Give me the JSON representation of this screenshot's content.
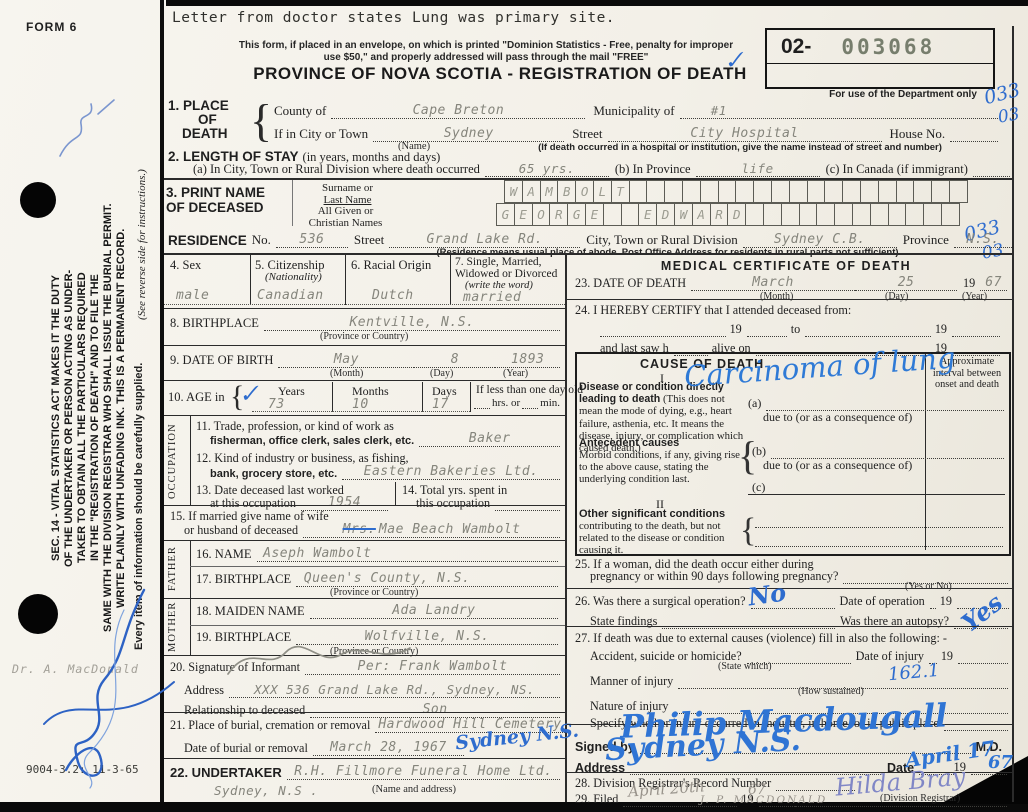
{
  "margin": {
    "form_no": "FORM 6",
    "sec14_lines": [
      "SEC. 14 - VITAL STATISTICS ACT MAKES IT THE DUTY",
      "OF THE UNDERTAKER OR PERSON ACTING AS UNDER-",
      "TAKER TO OBTAIN ALL THE PARTICULARS REQUIRED",
      "IN THE \"REGISTRATION OF DEATH\" AND TO FILE THE",
      "SAME WITH THE DIVISION REGISTRAR WHO SHALL ISSUE THE BURIAL PERMIT.",
      "WRITE PLAINLY WITH UNFADING INK. THIS IS A PERMANENT RECORD."
    ],
    "see_reverse": "(See reverse side for instructions.)",
    "every_item": "Every item of information should be carefully supplied.",
    "doctor": "Dr. A. MacDonald",
    "print_code": "9004-3.2: 11-3-65"
  },
  "header": {
    "top_note": "Letter from doctor states Lung was primary site.",
    "envelope1": "This form, if placed in an envelope, on which is printed \"Dominion Statistics - Free, penalty for improper",
    "envelope2": "use $50,\" and properly addressed will pass through the mail \"FREE\"",
    "title": "PROVINCE OF NOVA SCOTIA - REGISTRATION OF DEATH",
    "serial_prefix": "02-",
    "serial_number": "003068",
    "dept_only": "For use of the Department only",
    "check": "✓",
    "code1": "033",
    "code2": "03",
    "code3": "033",
    "code4": "03"
  },
  "s1": {
    "h1": "1. PLACE",
    "h2": "OF",
    "h3": "DEATH",
    "county_label": "County of",
    "county": "Cape Breton",
    "municipality_label": "Municipality of",
    "municipality": "#1",
    "city_label": "If in City or Town",
    "city": "Sydney",
    "name_cap": "(Name)",
    "street_label": "Street",
    "street": "City Hospital",
    "house_label": "House No.",
    "hospital_cap": "(If death occurred in a hospital or institution, give the name instead of street and number)"
  },
  "s2": {
    "h": "2. LENGTH OF STAY",
    "sub": "(in years, months and days)",
    "a_l": "(a) In City, Town or Rural Division where death occurred",
    "a_v": "65 yrs.",
    "b_l": "(b) In Province",
    "b_v": "life",
    "c_l": "(c) In Canada (if immigrant)"
  },
  "s3": {
    "h1": "3. PRINT NAME",
    "h2": "OF DECEASED",
    "sub1a": "Surname or",
    "sub1b": "Last Name",
    "sub2a": "All Given or",
    "sub2b": "Christian Names",
    "surname": "WAMBOLT",
    "given": "GEORGE  EDWARD"
  },
  "res": {
    "h": "RESIDENCE",
    "no_l": "No.",
    "no": "536",
    "street_l": "Street",
    "street": "Grand Lake Rd.",
    "city_l": "City, Town or Rural Division",
    "city": "Sydney C.B.",
    "prov_l": "Province",
    "prov": "N.S.",
    "cap": "(Residence means usual place of abode. Post Office Address for residents in rural parts not sufficient)"
  },
  "shared": {
    "y19": "19",
    "due_to": "due to (or as a consequence of)",
    "prov_cap": "(Province or Country)"
  },
  "left": {
    "s4": {
      "h": "4. Sex",
      "v": "male"
    },
    "s5": {
      "h": "5. Citizenship",
      "sub": "(Nationality)",
      "v": "Canadian"
    },
    "s6": {
      "h": "6. Racial Origin",
      "v": "Dutch"
    },
    "s7": {
      "h1": "7. Single, Married,",
      "h2": "Widowed or Divorced",
      "sub": "(write the word)",
      "v": "married"
    },
    "s8": {
      "h": "8. BIRTHPLACE",
      "v": "Kentville, N.S."
    },
    "s9": {
      "h": "9. DATE OF BIRTH",
      "month": "May",
      "cap1": "(Month)",
      "day": "8",
      "cap2": "(Day)",
      "year": "1893",
      "cap3": "(Year)"
    },
    "s10": {
      "h": "10. AGE in",
      "check": "✓",
      "years_l": "Years",
      "years": "73",
      "months_l": "Months",
      "months": "10",
      "days_l": "Days",
      "days": "17",
      "less": "If less than one day old",
      "hrs": "hrs. or",
      "min": "min."
    },
    "occ_label": "OCCUPATION",
    "s11": {
      "l1": "11. Trade, profession, or kind of work as",
      "l2": "fisherman, office clerk, sales clerk, etc.",
      "v": "Baker"
    },
    "s12": {
      "l1": "12. Kind of industry or business, as fishing,",
      "l2": "bank, grocery store, etc.",
      "v": "Eastern Bakeries Ltd."
    },
    "s13": {
      "l1": "13. Date deceased last worked",
      "l2": "at this occupation",
      "v": "1954"
    },
    "s14": {
      "l1": "14. Total yrs. spent in",
      "l2": "this occupation"
    },
    "s15": {
      "l1": "15. If married give name of wife",
      "l2": "or husband of deceased",
      "struck": "Mrs.",
      "v": "Mae Beach Wambolt"
    },
    "father_label": "FATHER",
    "s16": {
      "h": "16. NAME",
      "v": "Aseph Wambolt"
    },
    "s17": {
      "h": "17. BIRTHPLACE",
      "v": "Queen's County, N.S."
    },
    "mother_label": "MOTHER",
    "s18": {
      "h": "18. MAIDEN NAME",
      "v": "Ada Landry"
    },
    "s19": {
      "h": "19. BIRTHPLACE",
      "v": "Wolfville, N.S."
    },
    "s20": {
      "h": "20. Signature of Informant",
      "v": "Per: Frank Wambolt",
      "addr_l": "Address",
      "addr_v": "XXX   536 Grand Lake Rd., Sydney, NS.",
      "rel_l": "Relationship to deceased",
      "rel_v": "Son"
    },
    "s21": {
      "l1": "21. Place of burial, cremation or removal",
      "v1": "Hardwood Hill Cemetery",
      "l2": "Date of burial or removal",
      "v2": "March 28, 1967",
      "hw": "Sydney N.S."
    },
    "s22": {
      "h": "22. UNDERTAKER",
      "v1": "R.H. Fillmore Funeral Home Ltd.",
      "v2": "Sydney, N.S .",
      "cap": "(Name and address)"
    }
  },
  "right": {
    "med_title": "MEDICAL CERTIFICATE OF DEATH",
    "s23": {
      "h": "23. DATE OF DEATH",
      "month": "March",
      "cap1": "(Month)",
      "day": "25",
      "cap2": "(Day)",
      "year": "67",
      "cap3": "(Year)"
    },
    "s24": {
      "h": "24. I HEREBY CERTIFY that I attended deceased from:",
      "to": "to",
      "lastsaw": "and last saw h",
      "alive": "alive on"
    },
    "cause": {
      "title": "CAUSE OF DEATH",
      "n1": "I",
      "n2": "II",
      "interval": "Approximate interval between onset and death",
      "lead_bold": "Disease or condition directly leading to death",
      "lead_rest": "(This does not mean the mode of dying, e.g., heart failure, asthenia, etc. It means the disease, injury, or complication which caused death.)",
      "a": "(a)",
      "b": "(b)",
      "c": "(c)",
      "ante_bold": "Antecedent causes",
      "ante_rest": "Morbid conditions, if any, giving rise to the above cause, stating the underlying condition last.",
      "other_bold": "Other significant conditions",
      "other_rest": "contributing to the death, but not related to the disease or condition causing it.",
      "hw": "Carcinoma of lung"
    },
    "s25": {
      "l1": "25. If a woman, did the death occur either during",
      "l2": "pregnancy or within 90 days following pregnancy?",
      "cap": "(Yes or No)"
    },
    "s26": {
      "q": "26. Was there a surgical operation?",
      "hw_no": "No",
      "date_l": "Date of operation",
      "findings": "State findings",
      "autopsy": "Was there an autopsy?",
      "hw_yes": "Yes"
    },
    "s27": {
      "intro": "27. If death was due to external causes (violence) fill in also the following: -",
      "accident": "Accident, suicide or homicide?",
      "state_which": "(State which)",
      "date_injury": "Date of injury",
      "manner": "Manner of injury",
      "how": "(How sustained)",
      "hw_code": "162.1",
      "nature": "Nature of injury",
      "specify": "Specify whether injury occurred in industry, in home, or in public place"
    },
    "signed": {
      "l": "Signed by",
      "md": "M.D.",
      "hw_sig": "Philip Macdougall",
      "addr_l": "Address",
      "hw_addr": "Sydney N.S.",
      "date_l": "Date",
      "hw_date": "April 17",
      "hw_year": "67"
    },
    "s28": "28. Division Registrar's Record Number",
    "s29": {
      "l": "29. Filed",
      "pencil_date": "April 20th",
      "pencil_year": "67",
      "sig": "Hilda Bray",
      "cap": "(Division Registrar)",
      "pencil_name": "J. P. MACDONALD"
    }
  }
}
